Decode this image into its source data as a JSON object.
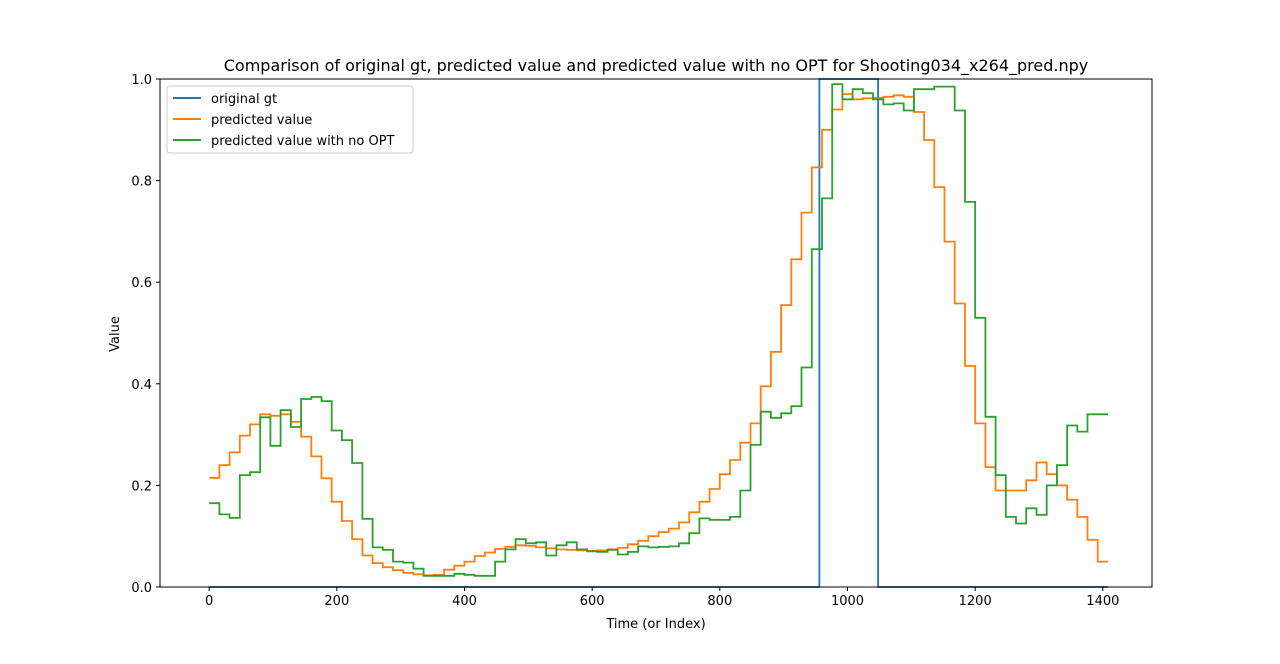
{
  "chart_data": {
    "type": "line",
    "title": "Comparison of original gt, predicted value and predicted value with no OPT for Shooting034_x264_pred.npy",
    "xlabel": "Time (or Index)",
    "ylabel": "Value",
    "xlim": [
      -77,
      1477
    ],
    "ylim": [
      0,
      1.0
    ],
    "xticks": [
      0,
      200,
      400,
      600,
      800,
      1000,
      1200,
      1400
    ],
    "yticks": [
      0.0,
      0.2,
      0.4,
      0.6,
      0.8,
      1.0
    ],
    "legend_position": "top-left",
    "grid": false,
    "series": [
      {
        "name": "original gt",
        "color": "#1f77b4",
        "step": false,
        "x": [
          0,
          956,
          956,
          1048,
          1048,
          1408
        ],
        "y": [
          0,
          0,
          1,
          1,
          0,
          0
        ]
      },
      {
        "name": "predicted value",
        "color": "#ff7f0e",
        "step": true,
        "x": [
          0,
          16,
          32,
          48,
          64,
          80,
          96,
          112,
          128,
          144,
          160,
          176,
          192,
          208,
          224,
          240,
          256,
          272,
          288,
          304,
          320,
          336,
          352,
          368,
          384,
          400,
          416,
          432,
          448,
          464,
          480,
          496,
          512,
          528,
          544,
          560,
          576,
          592,
          608,
          624,
          640,
          656,
          672,
          688,
          704,
          720,
          736,
          752,
          768,
          784,
          800,
          816,
          832,
          848,
          864,
          880,
          896,
          912,
          928,
          944,
          960,
          976,
          992,
          1008,
          1024,
          1040,
          1056,
          1072,
          1088,
          1104,
          1120,
          1136,
          1152,
          1168,
          1184,
          1200,
          1216,
          1232,
          1248,
          1264,
          1280,
          1296,
          1312,
          1328,
          1344,
          1360,
          1376,
          1392,
          1408
        ],
        "y": [
          0.215,
          0.24,
          0.265,
          0.298,
          0.32,
          0.34,
          0.337,
          0.34,
          0.325,
          0.296,
          0.257,
          0.214,
          0.168,
          0.13,
          0.094,
          0.062,
          0.047,
          0.039,
          0.033,
          0.028,
          0.025,
          0.023,
          0.024,
          0.034,
          0.042,
          0.05,
          0.061,
          0.068,
          0.075,
          0.079,
          0.082,
          0.081,
          0.078,
          0.076,
          0.074,
          0.073,
          0.072,
          0.071,
          0.072,
          0.074,
          0.077,
          0.084,
          0.091,
          0.1,
          0.108,
          0.115,
          0.127,
          0.147,
          0.168,
          0.193,
          0.222,
          0.25,
          0.284,
          0.322,
          0.395,
          0.463,
          0.555,
          0.645,
          0.737,
          0.826,
          0.9,
          0.94,
          0.97,
          0.96,
          0.962,
          0.963,
          0.965,
          0.968,
          0.965,
          0.935,
          0.88,
          0.787,
          0.68,
          0.558,
          0.435,
          0.322,
          0.236,
          0.19,
          0.19,
          0.19,
          0.21,
          0.245,
          0.222,
          0.2,
          0.172,
          0.138,
          0.093,
          0.05,
          0.05
        ]
      },
      {
        "name": "predicted value with no OPT",
        "color": "#2ca02c",
        "step": true,
        "x": [
          0,
          16,
          32,
          48,
          64,
          80,
          96,
          112,
          128,
          144,
          160,
          176,
          192,
          208,
          224,
          240,
          256,
          272,
          288,
          304,
          320,
          336,
          352,
          368,
          384,
          400,
          416,
          432,
          448,
          464,
          480,
          496,
          512,
          528,
          544,
          560,
          576,
          592,
          608,
          624,
          640,
          656,
          672,
          688,
          704,
          720,
          736,
          752,
          768,
          784,
          800,
          816,
          832,
          848,
          864,
          880,
          896,
          912,
          928,
          944,
          960,
          976,
          992,
          1008,
          1024,
          1040,
          1056,
          1072,
          1088,
          1104,
          1120,
          1136,
          1152,
          1168,
          1184,
          1200,
          1216,
          1232,
          1248,
          1264,
          1280,
          1296,
          1312,
          1328,
          1344,
          1360,
          1376,
          1392,
          1408
        ],
        "y": [
          0.165,
          0.143,
          0.136,
          0.22,
          0.226,
          0.334,
          0.278,
          0.348,
          0.315,
          0.37,
          0.374,
          0.366,
          0.308,
          0.289,
          0.244,
          0.134,
          0.078,
          0.073,
          0.05,
          0.048,
          0.036,
          0.022,
          0.022,
          0.022,
          0.026,
          0.024,
          0.022,
          0.022,
          0.05,
          0.074,
          0.094,
          0.086,
          0.088,
          0.062,
          0.082,
          0.088,
          0.074,
          0.07,
          0.069,
          0.073,
          0.064,
          0.069,
          0.08,
          0.078,
          0.079,
          0.08,
          0.086,
          0.106,
          0.135,
          0.132,
          0.132,
          0.138,
          0.19,
          0.28,
          0.345,
          0.333,
          0.342,
          0.356,
          0.432,
          0.665,
          0.765,
          0.99,
          0.96,
          0.98,
          0.972,
          0.96,
          0.95,
          0.952,
          0.938,
          0.98,
          0.98,
          0.985,
          0.985,
          0.938,
          0.758,
          0.53,
          0.335,
          0.22,
          0.138,
          0.125,
          0.155,
          0.142,
          0.2,
          0.24,
          0.318,
          0.306,
          0.34,
          0.34,
          0.34
        ]
      }
    ]
  }
}
